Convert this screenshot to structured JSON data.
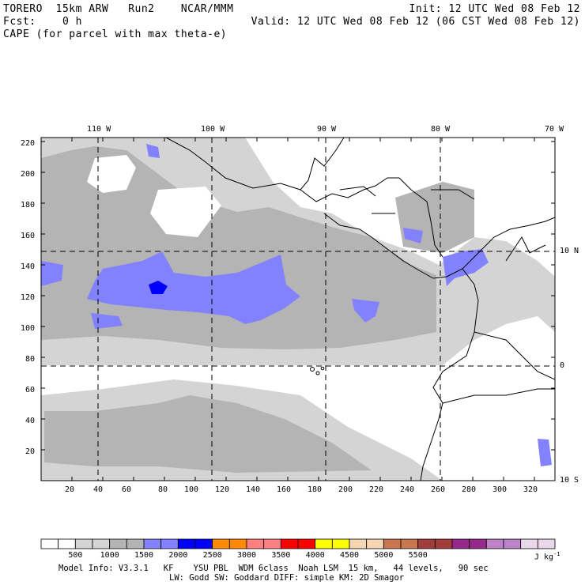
{
  "header": {
    "line1_left": "TORERO  15km ARW   Run2    NCAR/MMM",
    "line1_right": "Init: 12 UTC Wed 08 Feb 12",
    "line2_left": "Fcst:    0 h",
    "line2_right": "Valid: 12 UTC Wed 08 Feb 12 (06 CST Wed 08 Feb 12)",
    "line3": "CAPE (for parcel with max theta-e)"
  },
  "map": {
    "top_lon_labels": [
      "110 W",
      "100 W",
      "90 W",
      "80 W",
      "70 W"
    ],
    "right_lat_labels": [
      "10 N",
      "0",
      "10 S"
    ],
    "y_grid_labels": [
      "220",
      "200",
      "180",
      "160",
      "140",
      "120",
      "100",
      "80",
      "60",
      "40",
      "20"
    ],
    "x_grid_labels": [
      "20",
      "40",
      "60",
      "80",
      "100",
      "120",
      "140",
      "160",
      "180",
      "200",
      "220",
      "240",
      "260",
      "280",
      "300",
      "320"
    ]
  },
  "colorbar": {
    "tick_labels": [
      "500",
      "1000",
      "1500",
      "2000",
      "2500",
      "3000",
      "3500",
      "4000",
      "4500",
      "5000",
      "5500"
    ],
    "unit": "J kg",
    "unit_exp": "-1",
    "colors": [
      "#ffffff",
      "#d4d4d4",
      "#b4b4b4",
      "#8282ff",
      "#0000ff",
      "#ff8c00",
      "#ff8080",
      "#ff0000",
      "#ffff00",
      "#f5d7b4",
      "#c87850",
      "#a03c3c",
      "#96288c",
      "#be82c8",
      "#ebd7eb"
    ]
  },
  "footer": {
    "line1": "Model Info: V3.3.1   KF    YSU PBL  WDM 6class  Noah LSM  15 km,   44 levels,   90 sec",
    "line2": "LW: Godd SW: Goddard DIFF: simple KM: 2D Smagor"
  }
}
